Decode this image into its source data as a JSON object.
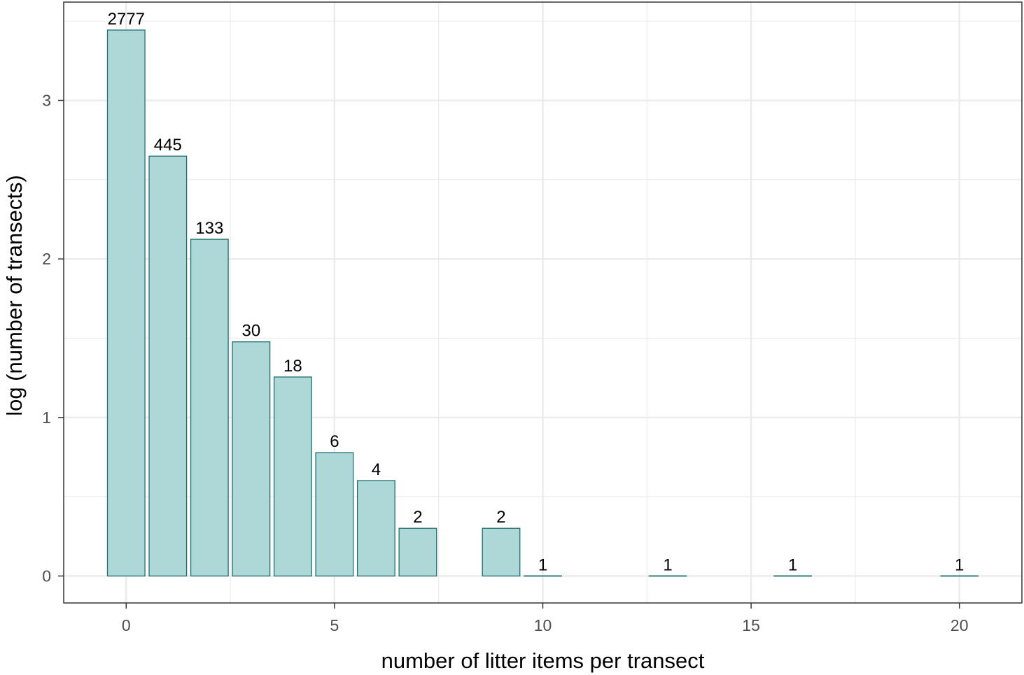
{
  "chart_data": {
    "type": "bar",
    "xlabel": "number of litter items per transect",
    "ylabel": "log (number of transects)",
    "x": [
      0,
      1,
      2,
      3,
      4,
      5,
      6,
      7,
      9,
      10,
      13,
      16,
      20
    ],
    "values": [
      3.4436,
      2.6484,
      2.1239,
      1.4771,
      1.2553,
      0.7782,
      0.6021,
      0.301,
      0.301,
      0,
      0,
      0,
      0
    ],
    "bar_labels": [
      "2777",
      "445",
      "133",
      "30",
      "18",
      "6",
      "4",
      "2",
      "2",
      "1",
      "1",
      "1",
      "1"
    ],
    "xlim": [
      -1.5,
      21.5
    ],
    "ylim": [
      -0.17,
      3.62
    ],
    "x_ticks": [
      0,
      5,
      10,
      15,
      20
    ],
    "x_tick_labels": [
      "0",
      "5",
      "10",
      "15",
      "20"
    ],
    "y_ticks": [
      0,
      1,
      2,
      3
    ],
    "y_tick_labels": [
      "0",
      "1",
      "2",
      "3"
    ],
    "grid": true,
    "colors": {
      "bar_fill": "#aed8d8",
      "bar_stroke": "#1f6e6e",
      "grid": "#ebebeb",
      "panel_border": "#333333"
    }
  }
}
